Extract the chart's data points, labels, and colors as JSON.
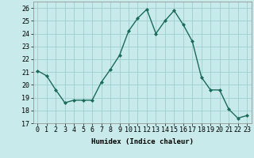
{
  "x": [
    0,
    1,
    2,
    3,
    4,
    5,
    6,
    7,
    8,
    9,
    10,
    11,
    12,
    13,
    14,
    15,
    16,
    17,
    18,
    19,
    20,
    21,
    22,
    23
  ],
  "y": [
    21.1,
    20.7,
    19.6,
    18.6,
    18.8,
    18.8,
    18.8,
    20.2,
    21.2,
    22.3,
    24.2,
    25.2,
    25.9,
    24.0,
    25.0,
    25.8,
    24.7,
    23.4,
    20.6,
    19.6,
    19.6,
    18.1,
    17.4,
    17.6
  ],
  "line_color": "#1a6b5a",
  "marker": "D",
  "marker_size": 2.0,
  "bg_color": "#c8eaea",
  "grid_color": "#9fcfcf",
  "xlabel": "Humidex (Indice chaleur)",
  "xlim": [
    -0.5,
    23.5
  ],
  "ylim": [
    17,
    26.5
  ],
  "yticks": [
    17,
    18,
    19,
    20,
    21,
    22,
    23,
    24,
    25,
    26
  ],
  "xticks": [
    0,
    1,
    2,
    3,
    4,
    5,
    6,
    7,
    8,
    9,
    10,
    11,
    12,
    13,
    14,
    15,
    16,
    17,
    18,
    19,
    20,
    21,
    22,
    23
  ],
  "xlabel_fontsize": 6.5,
  "tick_fontsize": 6.0,
  "line_width": 1.0
}
